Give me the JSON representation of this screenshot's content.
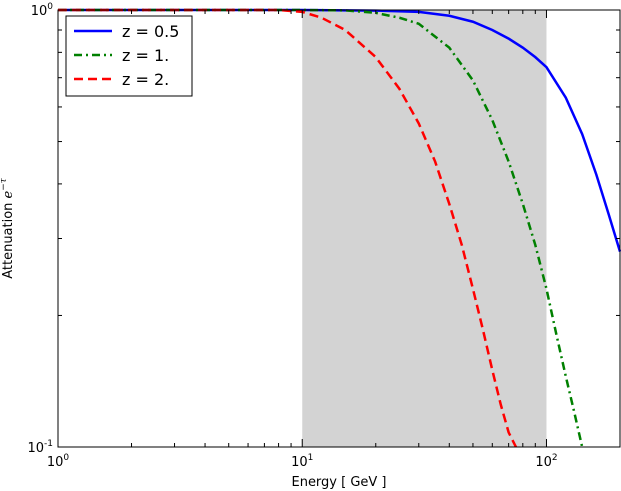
{
  "chart_data": {
    "type": "line",
    "title": "",
    "xlabel": "Energy [ GeV ]",
    "ylabel_prefix": "Attenuation ",
    "ylabel_math": "e",
    "ylabel_exponent": "−τ",
    "x_scale": "log",
    "y_scale": "log",
    "xlim": [
      1,
      200
    ],
    "ylim": [
      0.1,
      1
    ],
    "grid": false,
    "legend_position": "top-left",
    "x_ticks": [
      {
        "value": 1,
        "base": "10",
        "exp": "0"
      },
      {
        "value": 10,
        "base": "10",
        "exp": "1"
      },
      {
        "value": 100,
        "base": "10",
        "exp": "2"
      }
    ],
    "y_ticks": [
      {
        "value": 0.1,
        "base": "10",
        "exp": "-1"
      },
      {
        "value": 1,
        "base": "10",
        "exp": "0"
      }
    ],
    "shaded_region": {
      "x_start": 10,
      "x_end": 100,
      "color": "#d3d3d3"
    },
    "series": [
      {
        "name": "z = 0.5",
        "color": "#0000ff",
        "dash": "solid",
        "x": [
          1,
          10,
          20,
          30,
          40,
          50,
          60,
          70,
          80,
          90,
          100,
          120,
          140,
          160,
          180,
          200
        ],
        "y": [
          1.0,
          1.0,
          0.997,
          0.99,
          0.97,
          0.94,
          0.9,
          0.86,
          0.82,
          0.78,
          0.74,
          0.63,
          0.52,
          0.42,
          0.34,
          0.28
        ]
      },
      {
        "name": "z = 1.",
        "color": "#008000",
        "dash": "dashdot",
        "x": [
          1,
          10,
          15,
          20,
          25,
          30,
          40,
          50,
          60,
          70,
          80,
          90,
          100,
          110,
          120,
          130,
          140
        ],
        "y": [
          1.0,
          1.0,
          0.998,
          0.985,
          0.96,
          0.93,
          0.82,
          0.69,
          0.56,
          0.45,
          0.36,
          0.29,
          0.23,
          0.18,
          0.145,
          0.12,
          0.1
        ]
      },
      {
        "name": "z = 2.",
        "color": "#ff0000",
        "dash": "dashed",
        "x": [
          1,
          8,
          10,
          12,
          15,
          20,
          25,
          30,
          35,
          40,
          45,
          50,
          55,
          60,
          65,
          70,
          75
        ],
        "y": [
          1.0,
          1.0,
          0.99,
          0.96,
          0.9,
          0.78,
          0.66,
          0.55,
          0.45,
          0.36,
          0.29,
          0.23,
          0.185,
          0.15,
          0.125,
          0.108,
          0.1
        ]
      }
    ]
  }
}
